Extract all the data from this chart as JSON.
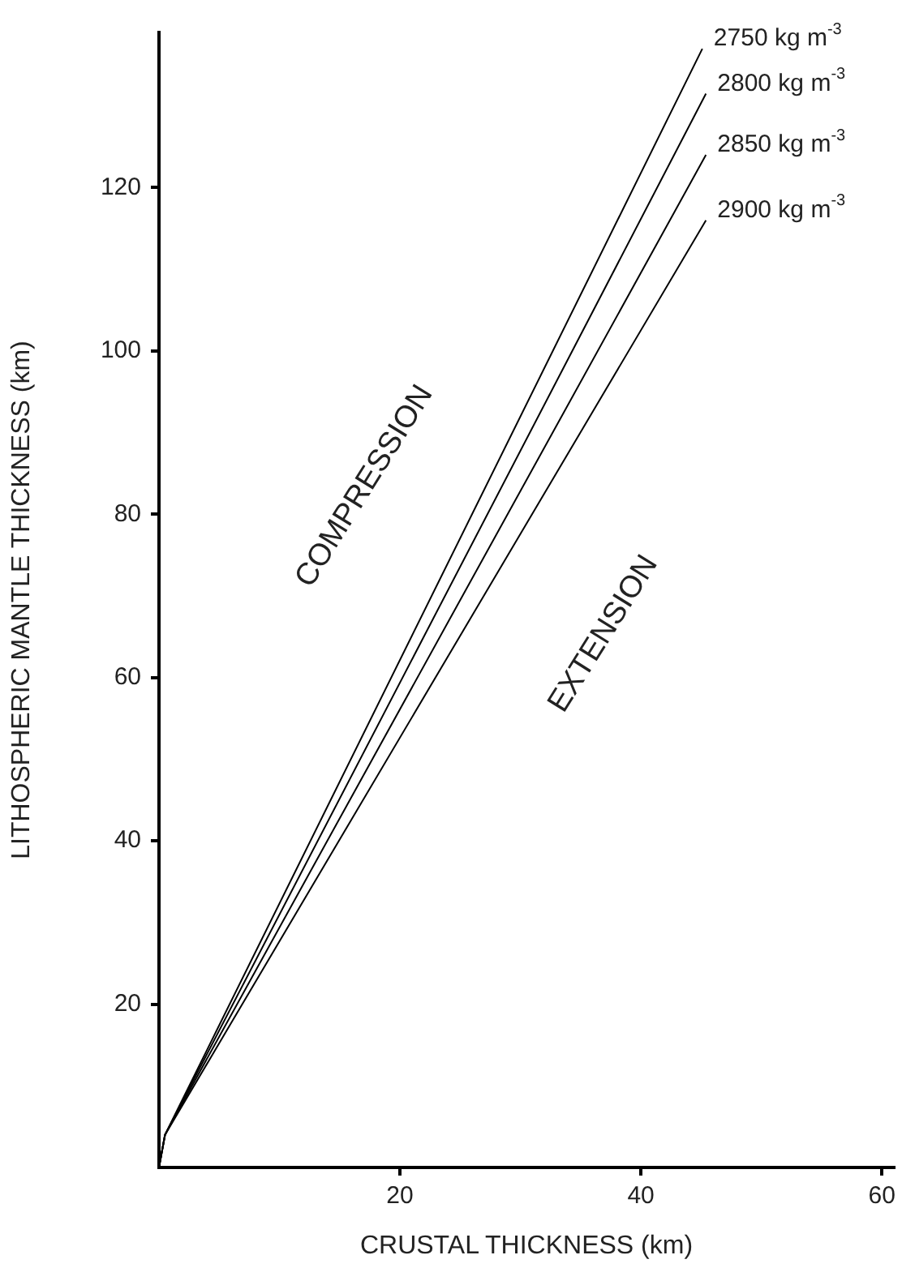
{
  "chart_data": {
    "type": "line",
    "xlabel": "CRUSTAL THICKNESS (km)",
    "ylabel": "LITHOSPHERIC MANTLE THICKNESS (km)",
    "xlim": [
      0,
      61
    ],
    "xticks": [
      20,
      40,
      60
    ],
    "ylim": [
      0,
      139
    ],
    "yticks": [
      20,
      40,
      60,
      80,
      100,
      120
    ],
    "x": [
      0,
      0.5,
      45.4
    ],
    "series": [
      {
        "name": "2750 kg m$^{-3}$",
        "color": "#000000",
        "x": [
          0,
          0.5,
          45.1
        ],
        "values": [
          0,
          4,
          137
        ]
      },
      {
        "name": "2800 kg m$^{-3}$",
        "color": "#000000",
        "values": [
          0,
          4,
          131.5
        ]
      },
      {
        "name": "2850 kg m$^{-3}$",
        "color": "#000000",
        "values": [
          0,
          4,
          124
        ]
      },
      {
        "name": "2900 kg m$^{-3}$",
        "color": "#000000",
        "values": [
          0,
          4,
          116
        ]
      }
    ],
    "annotations": [
      "COMPRESSION",
      "EXTENSION"
    ],
    "grid": false,
    "legend": false,
    "marker": "none",
    "line_style": "solid"
  }
}
